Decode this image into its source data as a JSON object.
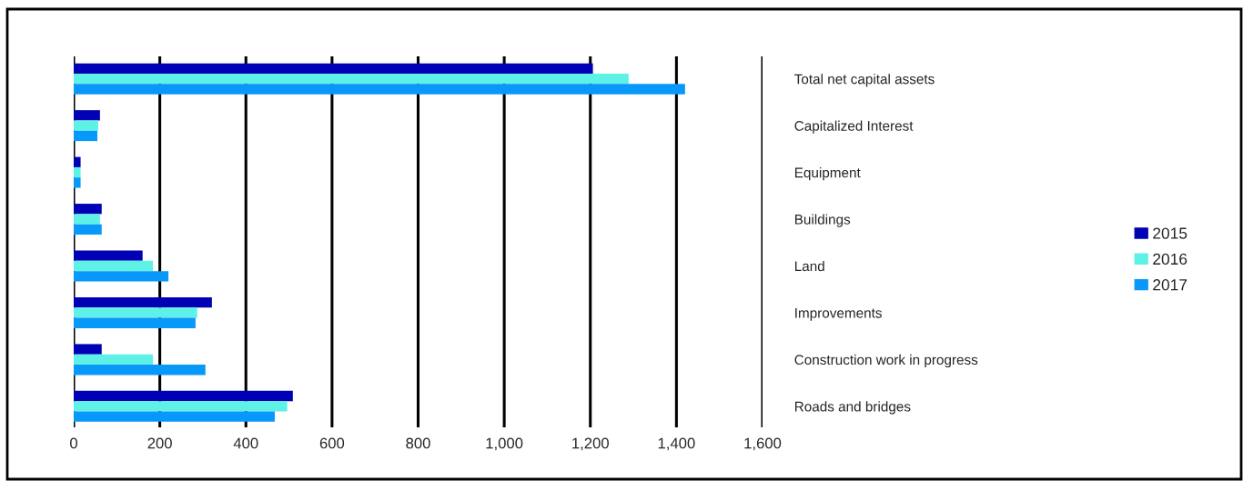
{
  "chart_data": {
    "type": "bar",
    "orientation": "horizontal",
    "categories": [
      "Total net capital assets",
      "Capitalized Interest",
      "Equipment",
      "Buildings",
      "Land",
      "Improvements",
      "Construction work in progress",
      "Roads and bridges"
    ],
    "series": [
      {
        "name": "2015",
        "color": "#0000b4",
        "values": [
          1206,
          61,
          16,
          65,
          160,
          321,
          65,
          509
        ]
      },
      {
        "name": "2016",
        "color": "#5ef2e6",
        "values": [
          1289,
          57,
          16,
          61,
          184,
          287,
          184,
          496
        ]
      },
      {
        "name": "2017",
        "color": "#0898fa",
        "values": [
          1420,
          55,
          16,
          65,
          220,
          283,
          306,
          467
        ]
      }
    ],
    "xlim": [
      0,
      1600
    ],
    "xticks": [
      0,
      200,
      400,
      600,
      800,
      {
        "value": 1000,
        "label": "1,000"
      },
      {
        "value": 1200,
        "label": "1,200"
      },
      {
        "value": 1400,
        "label": "1,400"
      },
      {
        "value": 1600,
        "label": "1,600"
      }
    ],
    "grid": "x",
    "legend": "right"
  }
}
